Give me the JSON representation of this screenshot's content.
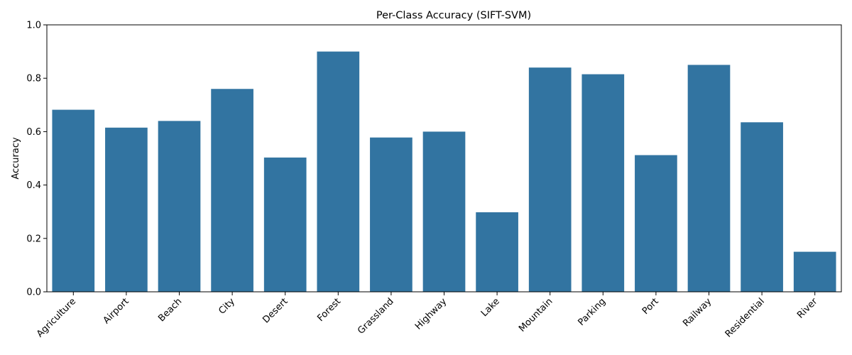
{
  "chart_data": {
    "type": "bar",
    "title": "Per-Class Accuracy (SIFT-SVM)",
    "xlabel": "",
    "ylabel": "Accuracy",
    "ylim": [
      0,
      1.0
    ],
    "yticks": [
      "0.0",
      "0.2",
      "0.4",
      "0.6",
      "0.8",
      "1.0"
    ],
    "categories": [
      "Agriculture",
      "Airport",
      "Beach",
      "City",
      "Desert",
      "Forest",
      "Grassland",
      "Highway",
      "Lake",
      "Mountain",
      "Parking",
      "Port",
      "Railway",
      "Residential",
      "River"
    ],
    "values": [
      0.682,
      0.615,
      0.64,
      0.76,
      0.503,
      0.9,
      0.578,
      0.6,
      0.298,
      0.84,
      0.815,
      0.512,
      0.85,
      0.635,
      0.15
    ],
    "bar_color": "#3274a1",
    "grid": false,
    "x_tick_rotation": "45deg"
  }
}
